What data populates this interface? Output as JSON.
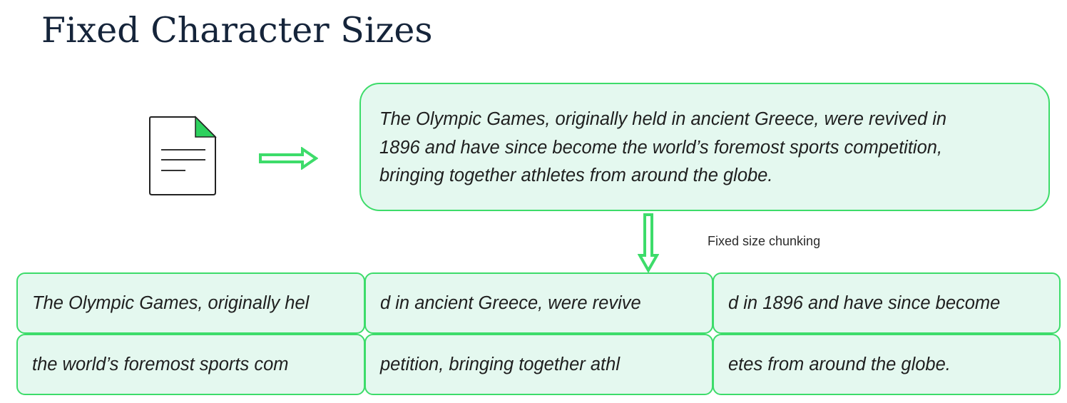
{
  "title": "Fixed Character Sizes",
  "icons": {
    "document": "document-icon",
    "arrow_right": "arrow-right-icon",
    "arrow_down": "arrow-down-icon"
  },
  "colors": {
    "accent_green": "#3ddc6a",
    "box_fill": "#e4f8ef",
    "title_color": "#15243a",
    "text_color": "#1f1f1f"
  },
  "source": {
    "lines": [
      "The Olympic Games, originally held in ancient Greece, were revived in",
      "1896 and have since become the world’s foremost sports competition,",
      "bringing together athletes from around the globe."
    ]
  },
  "process_label": "Fixed size chunking",
  "chunks": [
    "The Olympic Games, originally hel",
    "d in ancient Greece, were revive",
    "d in 1896 and have since become",
    "the world’s foremost sports com",
    "petition, bringing together athl",
    "etes from around the globe."
  ]
}
